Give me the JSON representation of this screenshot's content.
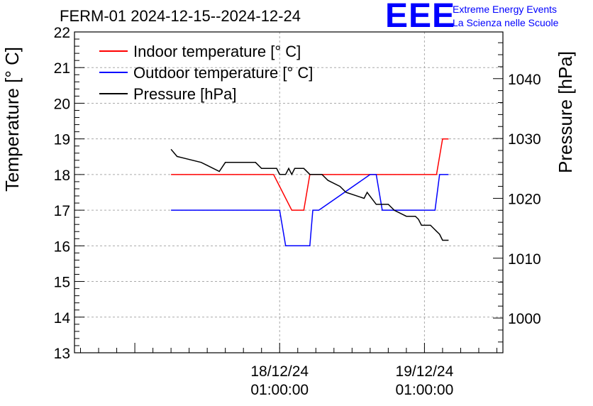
{
  "header": {
    "title": "FERM-01 2024-12-15--2024-12-24"
  },
  "logo": {
    "mark": "EEE",
    "line1": "Extreme Energy Events",
    "line2": "La Scienza nelle Scuole"
  },
  "chart_data": {
    "type": "line",
    "ylabel": "Temperature [° C]",
    "y2label": "Pressure [hPa]",
    "ylim": [
      13,
      22
    ],
    "y2lim": [
      994.2,
      1047.8
    ],
    "yticks": [
      "13",
      "14",
      "15",
      "16",
      "17",
      "18",
      "19",
      "20",
      "21",
      "22"
    ],
    "y2ticks": [
      "1000",
      "1010",
      "1020",
      "1030",
      "1040"
    ],
    "xticks": [
      {
        "date": "18/12/24",
        "time": "01:00:00"
      },
      {
        "date": "19/12/24",
        "time": "01:00:00"
      }
    ],
    "grid": true,
    "legend_position": "top-left",
    "colors": {
      "indoor": "#ff0000",
      "outdoor": "#0000ff",
      "pressure": "#000000"
    },
    "series": [
      {
        "name": "Indoor temperature [° C]",
        "axis": "left",
        "x": [
          "2024-12-17 07:00",
          "2024-12-17 19:00",
          "2024-12-18 00:00",
          "2024-12-18 03:00",
          "2024-12-18 04:00",
          "2024-12-18 05:00",
          "2024-12-18 06:00",
          "2024-12-18 20:00",
          "2024-12-19 03:00",
          "2024-12-19 04:00",
          "2024-12-19 05:00"
        ],
        "values": [
          18,
          18,
          18,
          17,
          17,
          17,
          18,
          18,
          18,
          19,
          19
        ]
      },
      {
        "name": "Outdoor temperature [° C]",
        "axis": "left",
        "x": [
          "2024-12-17 07:00",
          "2024-12-18 00:00",
          "2024-12-18 01:00",
          "2024-12-18 02:00",
          "2024-12-18 03:00",
          "2024-12-18 04:00",
          "2024-12-18 06:00",
          "2024-12-18 06:30",
          "2024-12-18 07:00",
          "2024-12-18 07:30",
          "2024-12-18 16:00",
          "2024-12-18 17:00",
          "2024-12-18 18:00",
          "2024-12-19 02:45",
          "2024-12-19 03:30",
          "2024-12-19 04:30",
          "2024-12-19 05:00"
        ],
        "values": [
          17,
          17,
          17,
          16,
          16,
          16,
          16,
          17,
          17,
          17,
          18,
          18,
          17,
          17,
          18,
          18,
          18
        ]
      },
      {
        "name": "Pressure [hPa]",
        "axis": "right",
        "x": [
          "2024-12-17 07:00",
          "2024-12-17 08:00",
          "2024-12-17 12:00",
          "2024-12-17 13:00",
          "2024-12-17 15:00",
          "2024-12-17 16:00",
          "2024-12-17 21:00",
          "2024-12-17 22:00",
          "2024-12-18 00:30",
          "2024-12-18 01:00",
          "2024-12-18 02:00",
          "2024-12-18 02:30",
          "2024-12-18 03:00",
          "2024-12-18 03:30",
          "2024-12-18 05:00",
          "2024-12-18 06:00",
          "2024-12-18 08:00",
          "2024-12-18 09:00",
          "2024-12-18 11:00",
          "2024-12-18 12:00",
          "2024-12-18 15:00",
          "2024-12-18 15:30",
          "2024-12-18 17:00",
          "2024-12-18 19:00",
          "2024-12-18 20:00",
          "2024-12-18 22:00",
          "2024-12-18 23:30",
          "2024-12-19 00:00",
          "2024-12-19 00:30",
          "2024-12-19 02:00",
          "2024-12-19 02:30",
          "2024-12-19 03:00",
          "2024-12-19 03:30",
          "2024-12-19 04:00",
          "2024-12-19 05:00"
        ],
        "values": [
          1028.2,
          1027,
          1026,
          1025.5,
          1024.5,
          1026,
          1026,
          1025,
          1025,
          1024,
          1024,
          1025,
          1024,
          1025,
          1025,
          1024,
          1024,
          1023,
          1022,
          1021,
          1020,
          1021,
          1019,
          1019,
          1018,
          1017,
          1017,
          1016.5,
          1015.5,
          1015.5,
          1015,
          1014.5,
          1014,
          1013,
          1013
        ]
      }
    ]
  }
}
